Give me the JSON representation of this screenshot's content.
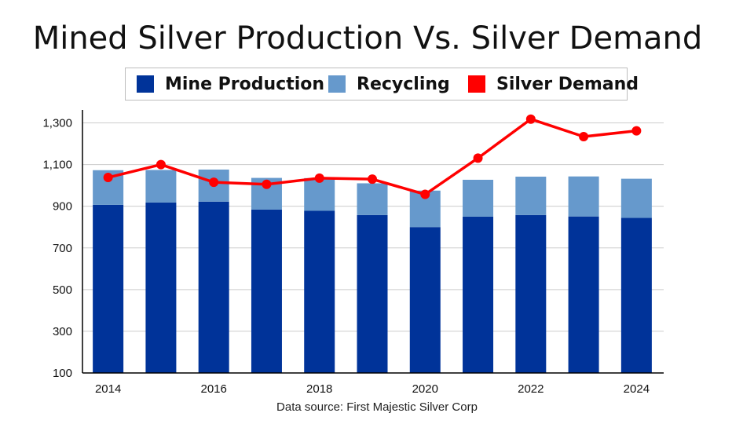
{
  "title": "Mined Silver Production Vs. Silver Demand",
  "legend": {
    "mine_production": "Mine Production",
    "recycling": "Recycling",
    "silver_demand": "Silver Demand"
  },
  "source": "Data source: First Majestic Silver Corp",
  "colors": {
    "mine_production": "#003399",
    "recycling": "#6699cc",
    "silver_demand": "#ff0000",
    "grid": "#cccccc",
    "axis": "#000000"
  },
  "chart_data": {
    "type": "bar",
    "stacked": true,
    "title": "Mined Silver Production Vs. Silver Demand",
    "categories": [
      "2014",
      "2015",
      "2016",
      "2017",
      "2018",
      "2019",
      "2020",
      "2021",
      "2022",
      "2023",
      "2024"
    ],
    "x_tick_labels": [
      "2014",
      "2016",
      "2018",
      "2020",
      "2022",
      "2024"
    ],
    "series": [
      {
        "name": "Mine Production",
        "type": "bar",
        "values": [
          907,
          918,
          922,
          884,
          878,
          858,
          800,
          850,
          858,
          851,
          844
        ]
      },
      {
        "name": "Recycling",
        "type": "bar",
        "values": [
          166,
          156,
          154,
          152,
          157,
          152,
          175,
          177,
          184,
          192,
          188
        ]
      },
      {
        "name": "Silver Demand",
        "type": "line",
        "values": [
          1038,
          1100,
          1015,
          1005,
          1035,
          1030,
          957,
          1131,
          1318,
          1234,
          1262
        ]
      }
    ],
    "y_ticks": [
      "100",
      "300",
      "500",
      "700",
      "900",
      "1,100",
      "1,300"
    ],
    "ylim": [
      100,
      1300
    ],
    "grid": true,
    "legend_position": "top"
  }
}
